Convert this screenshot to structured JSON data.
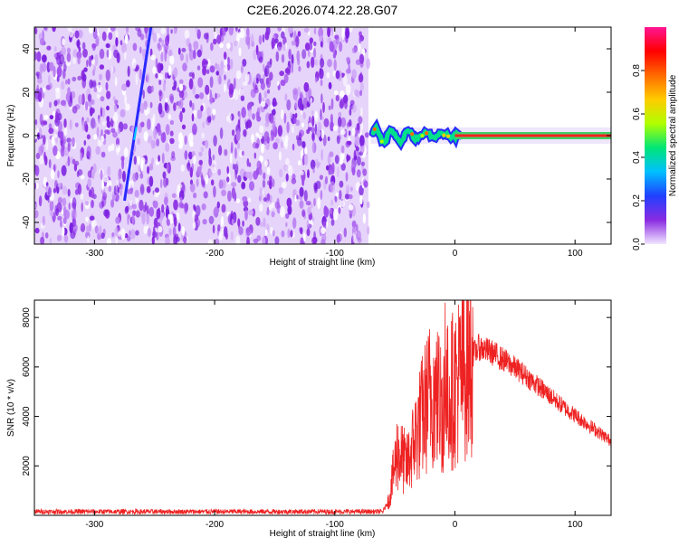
{
  "title": "C2E6.2026.074.22.28.G07",
  "chart_data": [
    {
      "type": "heatmap",
      "xlabel": "Height of straight line (km)",
      "ylabel": "Frequency (Hz)",
      "xlim": [
        -350,
        130
      ],
      "ylim": [
        -50,
        50
      ],
      "xticks": [
        -300,
        -200,
        -100,
        0,
        100
      ],
      "yticks": [
        -40,
        -20,
        0,
        20,
        40
      ],
      "grid": false,
      "colorbar": {
        "label": "Normalized spectral amplitude",
        "range": [
          0,
          1
        ],
        "ticks": [
          0.0,
          0.2,
          0.4,
          0.6,
          0.8
        ],
        "colors": [
          "#f2e6ff",
          "#8a2be2",
          "#2040ff",
          "#00c0ff",
          "#00e676",
          "#b0ff00",
          "#ffcc00",
          "#ff6a00",
          "#ff0000",
          "#ff1493"
        ]
      },
      "noise_region_x": [
        -350,
        -72
      ],
      "line_feature": {
        "x_start": -275,
        "y_start": -30,
        "x_end": -253,
        "y_end": 50
      },
      "carrier_y": 0
    },
    {
      "type": "line",
      "xlabel": "Height of straight line (km)",
      "ylabel": "SNR (10 * v/v)",
      "xlim": [
        -350,
        130
      ],
      "ylim": [
        0,
        8700
      ],
      "xticks": [
        -300,
        -200,
        -100,
        0,
        100
      ],
      "yticks": [
        2000,
        4000,
        6000,
        8000
      ],
      "grid": false,
      "color": "#ee2222",
      "envelope": {
        "x": [
          -350,
          -60,
          -55,
          -48,
          -40,
          -30,
          -20,
          -10,
          0,
          10,
          20,
          30,
          40,
          55,
          70,
          90,
          110,
          130
        ],
        "y": [
          150,
          150,
          600,
          2600,
          2000,
          3600,
          5000,
          4500,
          5200,
          6200,
          6800,
          6600,
          6300,
          5800,
          5200,
          4400,
          3700,
          3000
        ]
      }
    }
  ]
}
